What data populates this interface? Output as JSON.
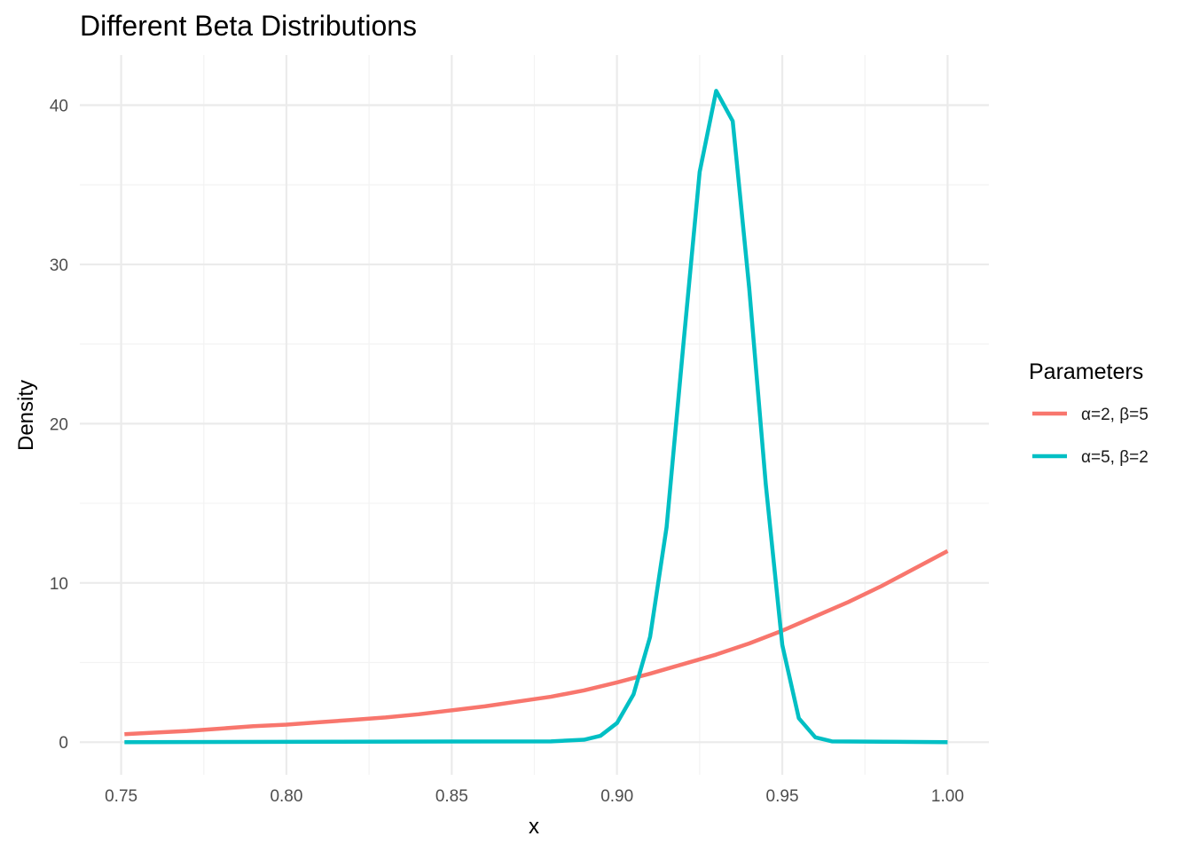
{
  "chart_data": {
    "type": "line",
    "title": "Different Beta Distributions",
    "xlabel": "x",
    "ylabel": "Density",
    "xlim": [
      0.7375,
      1.0125
    ],
    "ylim": [
      -2.05,
      43.15
    ],
    "x_ticks": [
      0.75,
      0.8,
      0.85,
      0.9,
      0.95,
      1.0
    ],
    "x_tick_labels": [
      "0.75",
      "0.80",
      "0.85",
      "0.90",
      "0.95",
      "1.00"
    ],
    "y_ticks": [
      0,
      10,
      20,
      30,
      40
    ],
    "y_tick_labels": [
      "0",
      "10",
      "20",
      "30",
      "40"
    ],
    "grid": true,
    "legend": {
      "title": "Parameters",
      "position": "right"
    },
    "series": [
      {
        "name": "α=2, β=5",
        "color": "#F8766D",
        "x": [
          0.751,
          0.76,
          0.77,
          0.78,
          0.79,
          0.8,
          0.81,
          0.82,
          0.83,
          0.84,
          0.85,
          0.86,
          0.87,
          0.88,
          0.89,
          0.9,
          0.91,
          0.92,
          0.93,
          0.94,
          0.95,
          0.96,
          0.97,
          0.98,
          0.99,
          1.0
        ],
        "y": [
          0.5,
          0.6,
          0.7,
          0.85,
          1.0,
          1.1,
          1.25,
          1.4,
          1.55,
          1.75,
          2.0,
          2.25,
          2.55,
          2.85,
          3.25,
          3.75,
          4.3,
          4.9,
          5.5,
          6.2,
          7.0,
          7.9,
          8.8,
          9.8,
          10.9,
          12.0
        ]
      },
      {
        "name": "α=5, β=2",
        "color": "#00BFC4",
        "x": [
          0.751,
          0.88,
          0.89,
          0.895,
          0.9,
          0.905,
          0.91,
          0.915,
          0.92,
          0.925,
          0.93,
          0.935,
          0.94,
          0.945,
          0.95,
          0.955,
          0.96,
          0.965,
          1.0
        ],
        "y": [
          0.0,
          0.05,
          0.15,
          0.4,
          1.2,
          3.0,
          6.6,
          13.5,
          24.8,
          35.8,
          40.9,
          39.0,
          28.5,
          16.2,
          6.1,
          1.5,
          0.3,
          0.05,
          0.0
        ]
      }
    ]
  }
}
